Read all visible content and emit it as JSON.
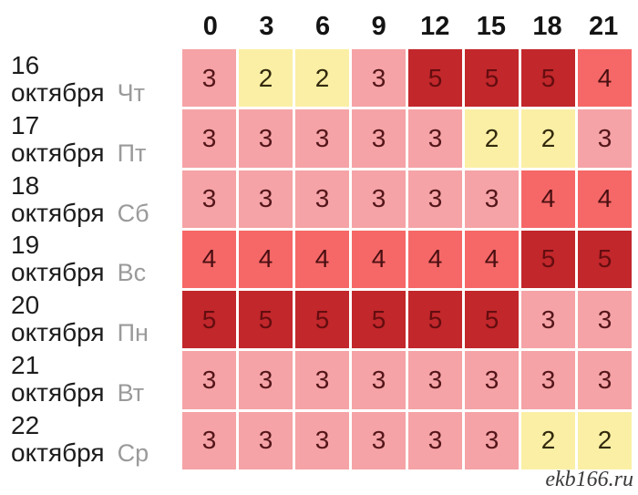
{
  "hours": [
    "0",
    "3",
    "6",
    "9",
    "12",
    "15",
    "18",
    "21"
  ],
  "rows": [
    {
      "day": "16",
      "month": "октября",
      "weekday": "Чт",
      "values": [
        3,
        2,
        2,
        3,
        5,
        5,
        5,
        4
      ]
    },
    {
      "day": "17",
      "month": "октября",
      "weekday": "Пт",
      "values": [
        3,
        3,
        3,
        3,
        3,
        2,
        2,
        3
      ]
    },
    {
      "day": "18",
      "month": "октября",
      "weekday": "Сб",
      "values": [
        3,
        3,
        3,
        3,
        3,
        3,
        4,
        4
      ]
    },
    {
      "day": "19",
      "month": "октября",
      "weekday": "Вс",
      "values": [
        4,
        4,
        4,
        4,
        4,
        4,
        5,
        5
      ]
    },
    {
      "day": "20",
      "month": "октября",
      "weekday": "Пн",
      "values": [
        5,
        5,
        5,
        5,
        5,
        5,
        3,
        3
      ]
    },
    {
      "day": "21",
      "month": "октября",
      "weekday": "Вт",
      "values": [
        3,
        3,
        3,
        3,
        3,
        3,
        3,
        3
      ]
    },
    {
      "day": "22",
      "month": "октября",
      "weekday": "Ср",
      "values": [
        3,
        3,
        3,
        3,
        3,
        3,
        2,
        2
      ]
    }
  ],
  "value_colors": {
    "2": {
      "bg": "#FAEFA5",
      "fg": "#33290d"
    },
    "3": {
      "bg": "#F5A3A6",
      "fg": "#54161a"
    },
    "4": {
      "bg": "#F56867",
      "fg": "#4a0f12"
    },
    "5": {
      "bg": "#C2272B",
      "fg": "#650d10"
    }
  },
  "watermark": "ekb166.ru",
  "chart_data": {
    "type": "heatmap",
    "title": "",
    "xlabel": "",
    "ylabel": "",
    "x": [
      "0",
      "3",
      "6",
      "9",
      "12",
      "15",
      "18",
      "21"
    ],
    "y": [
      "16 октября Чт",
      "17 октября Пт",
      "18 октября Сб",
      "19 октября Вс",
      "20 октября Пн",
      "21 октября Вт",
      "22 октября Ср"
    ],
    "values": [
      [
        3,
        2,
        2,
        3,
        5,
        5,
        5,
        4
      ],
      [
        3,
        3,
        3,
        3,
        3,
        2,
        2,
        3
      ],
      [
        3,
        3,
        3,
        3,
        3,
        3,
        4,
        4
      ],
      [
        4,
        4,
        4,
        4,
        4,
        4,
        5,
        5
      ],
      [
        5,
        5,
        5,
        5,
        5,
        5,
        3,
        3
      ],
      [
        3,
        3,
        3,
        3,
        3,
        3,
        3,
        3
      ],
      [
        3,
        3,
        3,
        3,
        3,
        3,
        2,
        2
      ]
    ],
    "value_range": [
      2,
      5
    ],
    "color_scale": {
      "2": "#FAEFA5",
      "3": "#F5A3A6",
      "4": "#F56867",
      "5": "#C2272B"
    },
    "grid": false,
    "legend_position": "none"
  }
}
